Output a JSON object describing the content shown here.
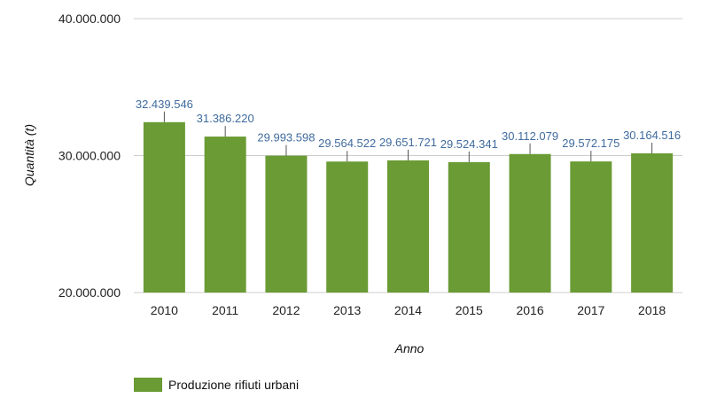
{
  "chart_data": {
    "type": "bar",
    "categories": [
      "2010",
      "2011",
      "2012",
      "2013",
      "2014",
      "2015",
      "2016",
      "2017",
      "2018"
    ],
    "series": [
      {
        "name": "Produzione rifiuti urbani",
        "values": [
          32439546,
          31386220,
          29993598,
          29564522,
          29651721,
          29524341,
          30112079,
          29572175,
          30164516
        ]
      }
    ],
    "data_labels": [
      "32.439.546",
      "31.386.220",
      "29.993.598",
      "29.564.522",
      "29.651.721",
      "29.524.341",
      "30.112.079",
      "29.572.175",
      "30.164.516"
    ],
    "ylim": [
      20000000,
      40000000
    ],
    "yticks": [
      20000000,
      30000000,
      40000000
    ],
    "ytick_labels": [
      "20.000.000",
      "30.000.000",
      "40.000.000"
    ],
    "xlabel": "Anno",
    "ylabel": "Quantità (t)",
    "legend_position": "bottom-left",
    "grid": true,
    "colors": {
      "bar": "#6a9b34",
      "data_label": "#3f6b9e",
      "grid": "#cccccc",
      "whisker": "#555555"
    }
  }
}
